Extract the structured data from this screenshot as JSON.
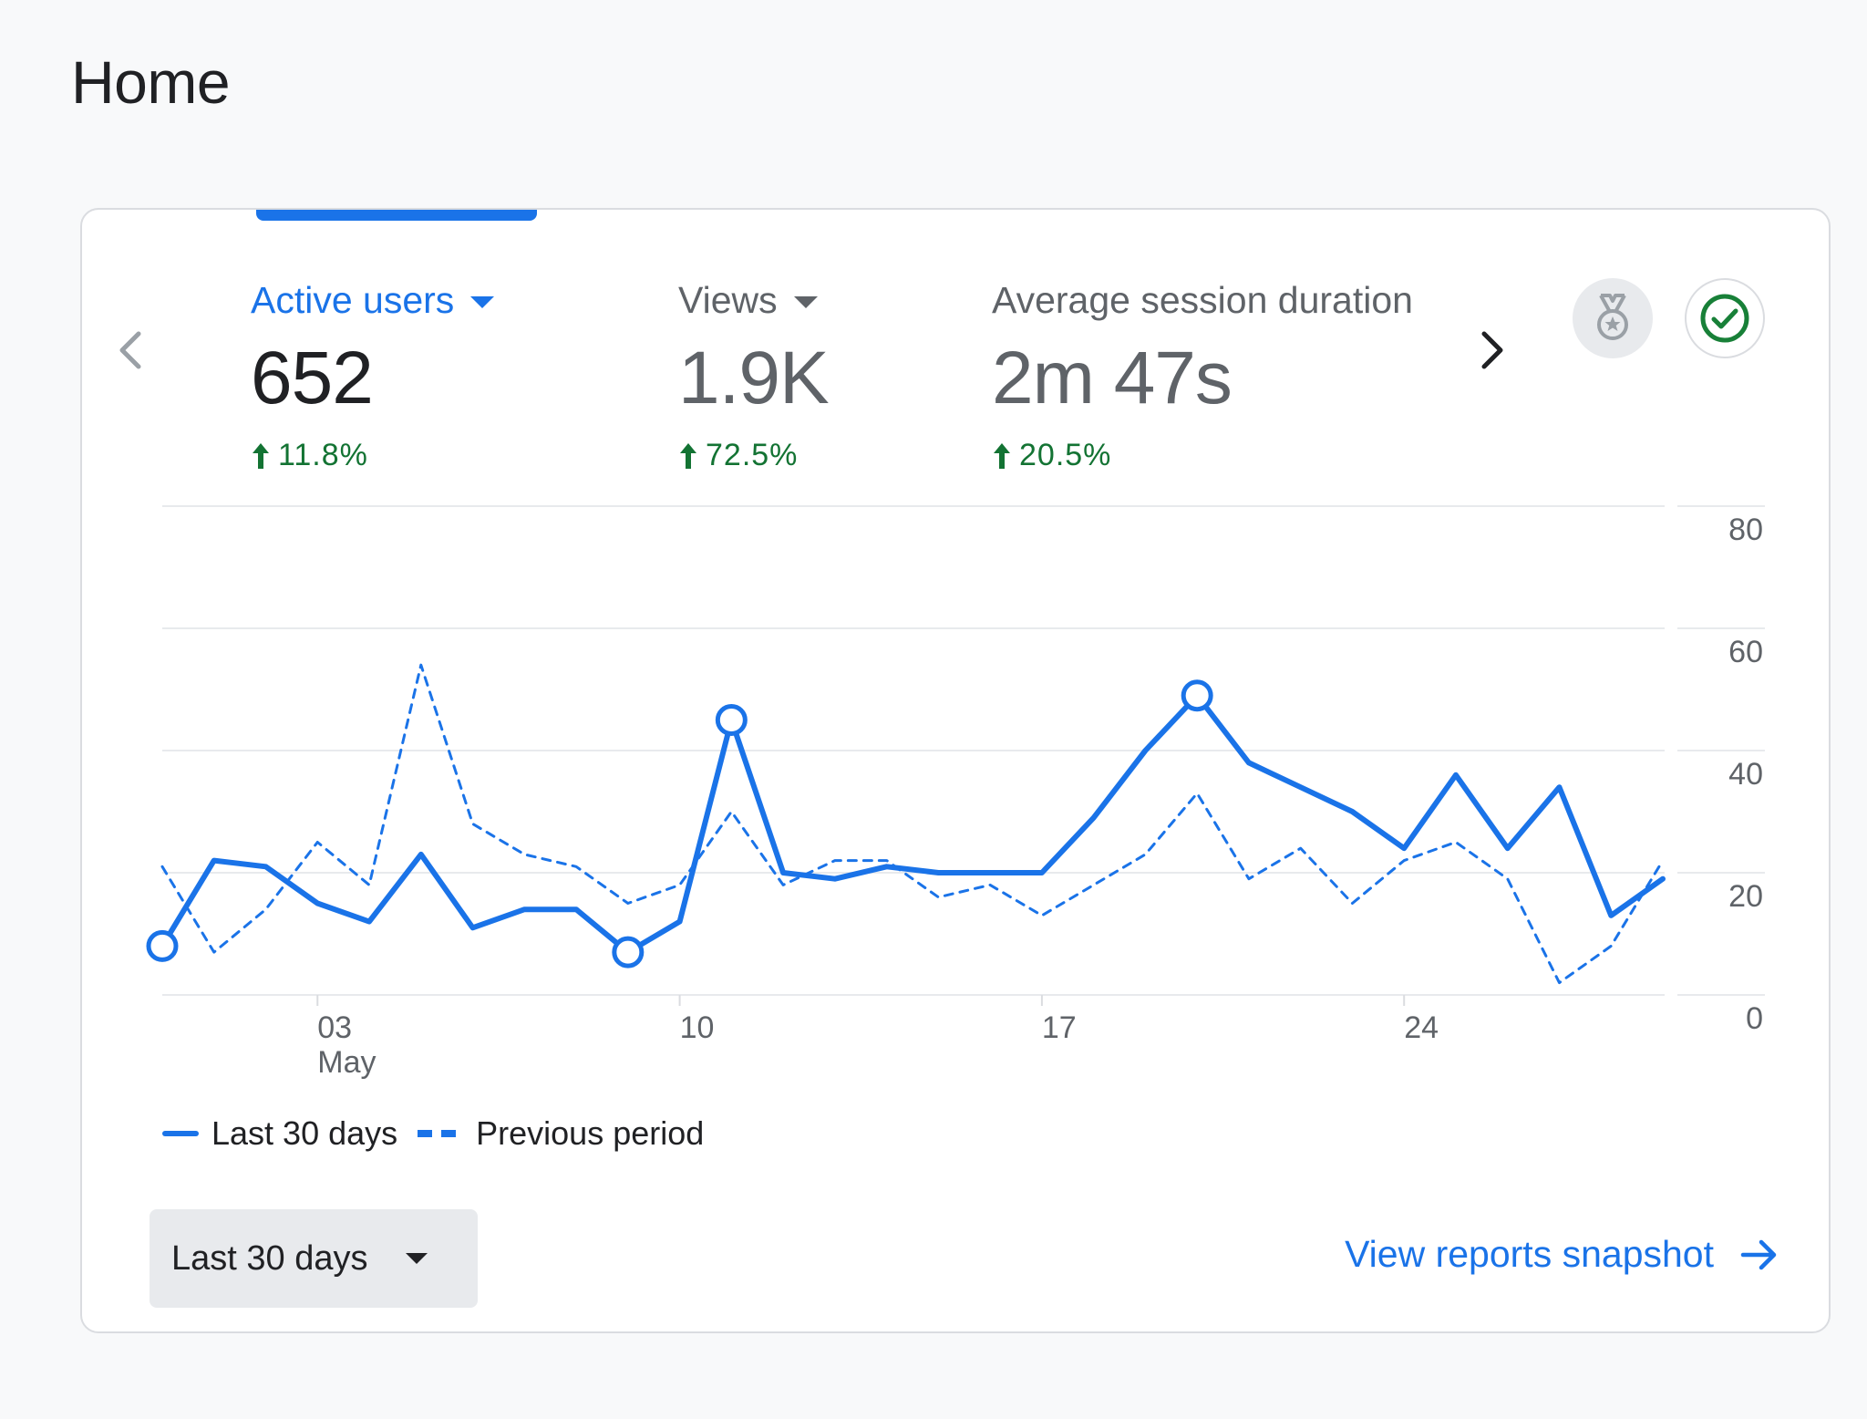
{
  "page": {
    "title": "Home"
  },
  "nav": {
    "prev_icon": "chevron-left-icon",
    "next_icon": "chevron-right-icon"
  },
  "metrics": [
    {
      "label": "Active users",
      "value": "652",
      "change": "11.8%",
      "active": true
    },
    {
      "label": "Views",
      "value": "1.9K",
      "change": "72.5%",
      "active": false
    },
    {
      "label": "Average session duration",
      "value": "2m 47s",
      "change": "20.5%",
      "active": false
    }
  ],
  "icons": {
    "insights": "medal-icon",
    "status": "check-circle-icon"
  },
  "colors": {
    "accent": "#1a73e8",
    "positive": "#137333",
    "text": "#202124",
    "muted": "#5f6368",
    "grid": "#e8eaed",
    "check": "#188038"
  },
  "chart_data": {
    "type": "line",
    "x": [
      1,
      2,
      3,
      4,
      5,
      6,
      7,
      8,
      9,
      10,
      11,
      12,
      13,
      14,
      15,
      16,
      17,
      18,
      19,
      20,
      21,
      22,
      23,
      24,
      25,
      26,
      27,
      28,
      29,
      30
    ],
    "x_tick_labels": [
      {
        "x": 4,
        "label": "03",
        "sublabel": "May"
      },
      {
        "x": 11,
        "label": "10"
      },
      {
        "x": 18,
        "label": "17"
      },
      {
        "x": 25,
        "label": "24"
      }
    ],
    "y_ticks": [
      "80",
      "60",
      "40",
      "20",
      "0"
    ],
    "ylim": [
      0,
      80
    ],
    "series": [
      {
        "name": "Last 30 days",
        "style": "solid",
        "values": [
          8,
          22,
          21,
          15,
          12,
          23,
          11,
          14,
          14,
          7,
          12,
          45,
          20,
          19,
          21,
          20,
          20,
          20,
          29,
          40,
          49,
          38,
          34,
          30,
          24,
          36,
          24,
          34,
          13,
          19
        ],
        "highlighted_points": [
          0,
          9,
          11,
          20
        ]
      },
      {
        "name": "Previous period",
        "style": "dashed",
        "values": [
          21,
          7,
          14,
          25,
          18,
          54,
          28,
          23,
          21,
          15,
          18,
          30,
          18,
          22,
          22,
          16,
          18,
          13,
          18,
          23,
          33,
          19,
          24,
          15,
          22,
          25,
          19,
          2,
          8,
          22
        ]
      }
    ],
    "legend": {
      "position": "bottom-left",
      "items": [
        "Last 30 days",
        "Previous period"
      ]
    }
  },
  "footer": {
    "date_range": "Last 30 days",
    "view_link": "View reports snapshot",
    "link_icon": "arrow-right-icon"
  }
}
